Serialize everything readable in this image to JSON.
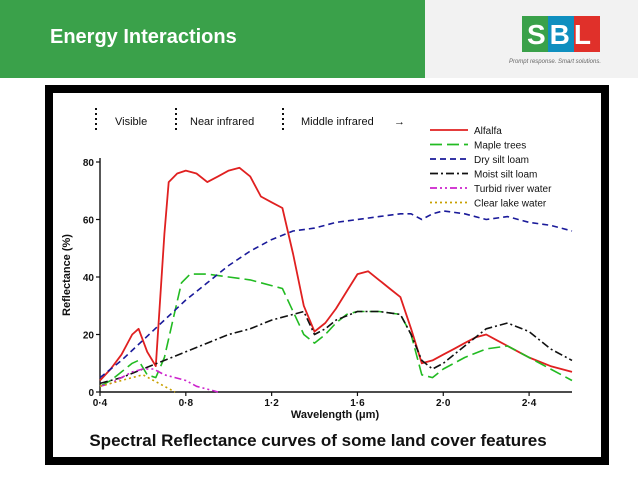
{
  "header": {
    "title": "Energy Interactions",
    "logo_text": "SBL",
    "tagline": "Prompt response. Smart solutions.",
    "accent_color": "#3aa14a"
  },
  "figure": {
    "caption": "Spectral Reflectance curves of some land cover features",
    "regions": [
      {
        "label": "Visible",
        "arrow": ""
      },
      {
        "label": "Near infrared",
        "arrow": ""
      },
      {
        "label": "Middle infrared",
        "arrow": "→"
      }
    ]
  },
  "chart_data": {
    "type": "line",
    "title": "",
    "xlabel": "Wavelength (μm)",
    "ylabel": "Reflectance (%)",
    "xlim": [
      0.4,
      2.6
    ],
    "ylim": [
      0,
      80
    ],
    "xticks": [
      0.4,
      0.8,
      1.2,
      1.6,
      2.0,
      2.4
    ],
    "xtick_labels": [
      "0·4",
      "0·8",
      "1·2",
      "1·6",
      "2·0",
      "2·4"
    ],
    "yticks": [
      0,
      20,
      40,
      60,
      80
    ],
    "ytick_labels": [
      "0",
      "20",
      "40",
      "60",
      "80"
    ],
    "legend_position": "top-right",
    "grid": false,
    "series": [
      {
        "name": "Alfalfa",
        "color": "#e02020",
        "dash": "solid",
        "x": [
          0.4,
          0.45,
          0.5,
          0.55,
          0.58,
          0.62,
          0.66,
          0.7,
          0.72,
          0.76,
          0.8,
          0.85,
          0.9,
          0.95,
          1.0,
          1.05,
          1.1,
          1.15,
          1.2,
          1.25,
          1.3,
          1.35,
          1.4,
          1.45,
          1.5,
          1.55,
          1.6,
          1.65,
          1.7,
          1.75,
          1.8,
          1.85,
          1.9,
          1.95,
          2.0,
          2.05,
          2.1,
          2.15,
          2.2,
          2.25,
          2.3,
          2.35,
          2.4,
          2.5,
          2.6
        ],
        "y": [
          4,
          8,
          13,
          20,
          22,
          14,
          9,
          55,
          73,
          76,
          77,
          76,
          73,
          75,
          77,
          78,
          75,
          68,
          66,
          64,
          48,
          30,
          21,
          24,
          29,
          35,
          41,
          42,
          39,
          36,
          33,
          22,
          10,
          11,
          13,
          15,
          17,
          19,
          20,
          18,
          16,
          14,
          12,
          9,
          7
        ]
      },
      {
        "name": "Maple trees",
        "color": "#22bb22",
        "dash": "long-dash",
        "x": [
          0.4,
          0.45,
          0.5,
          0.55,
          0.58,
          0.62,
          0.66,
          0.7,
          0.74,
          0.78,
          0.82,
          0.9,
          1.0,
          1.1,
          1.2,
          1.25,
          1.3,
          1.35,
          1.4,
          1.45,
          1.5,
          1.55,
          1.6,
          1.7,
          1.8,
          1.85,
          1.9,
          1.95,
          2.0,
          2.1,
          2.2,
          2.3,
          2.4,
          2.5,
          2.6
        ],
        "y": [
          2,
          4,
          7,
          10,
          11,
          6,
          5,
          12,
          25,
          38,
          41,
          41,
          40,
          39,
          37,
          36,
          28,
          20,
          17,
          20,
          24,
          27,
          28,
          28,
          27,
          20,
          6,
          5,
          8,
          12,
          15,
          16,
          12,
          8,
          4
        ]
      },
      {
        "name": "Dry silt loam",
        "color": "#1a1a9a",
        "dash": "dash",
        "x": [
          0.4,
          0.5,
          0.6,
          0.7,
          0.8,
          0.9,
          1.0,
          1.1,
          1.2,
          1.3,
          1.4,
          1.5,
          1.6,
          1.7,
          1.8,
          1.85,
          1.9,
          1.95,
          2.0,
          2.1,
          2.2,
          2.3,
          2.4,
          2.5,
          2.6
        ],
        "y": [
          5,
          11,
          18,
          25,
          32,
          38,
          44,
          49,
          53,
          56,
          57,
          59,
          60,
          61,
          62,
          62,
          60,
          62,
          63,
          62,
          60,
          61,
          59,
          58,
          56
        ]
      },
      {
        "name": "Moist silt loam",
        "color": "#111111",
        "dash": "dash-dot",
        "x": [
          0.4,
          0.5,
          0.6,
          0.7,
          0.8,
          0.9,
          1.0,
          1.1,
          1.2,
          1.3,
          1.35,
          1.4,
          1.45,
          1.5,
          1.6,
          1.7,
          1.8,
          1.85,
          1.9,
          1.95,
          2.0,
          2.1,
          2.2,
          2.3,
          2.4,
          2.5,
          2.6
        ],
        "y": [
          3,
          5,
          8,
          11,
          14,
          17,
          20,
          22,
          25,
          27,
          28,
          20,
          22,
          25,
          28,
          28,
          27,
          20,
          11,
          8,
          10,
          16,
          22,
          24,
          21,
          15,
          11
        ]
      },
      {
        "name": "Turbid river water",
        "color": "#cc22cc",
        "dash": "dash-dot-dot",
        "x": [
          0.4,
          0.45,
          0.5,
          0.55,
          0.6,
          0.65,
          0.7,
          0.75,
          0.8,
          0.85,
          0.9,
          0.95
        ],
        "y": [
          2,
          3,
          5,
          7,
          8,
          8,
          6,
          5,
          4,
          2,
          1,
          0
        ]
      },
      {
        "name": "Clear lake water",
        "color": "#c8a000",
        "dash": "dot",
        "x": [
          0.4,
          0.45,
          0.5,
          0.55,
          0.6,
          0.65,
          0.7,
          0.75
        ],
        "y": [
          2,
          3,
          4,
          5,
          6,
          4,
          2,
          0
        ]
      }
    ]
  }
}
